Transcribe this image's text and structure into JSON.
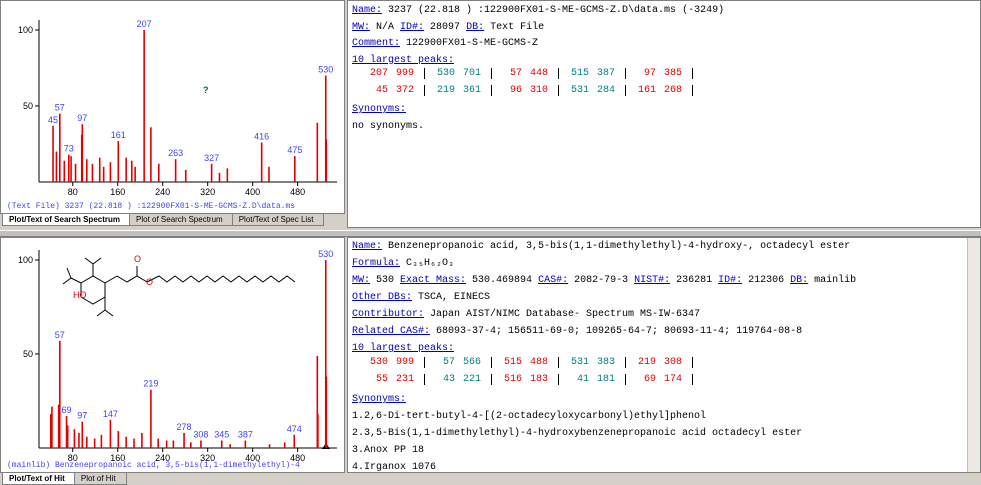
{
  "search": {
    "spectrum": {
      "xlim": [
        20,
        550
      ],
      "ylim": [
        0,
        100
      ],
      "xticks": [
        80,
        160,
        240,
        320,
        400,
        480
      ],
      "yticks": [
        50,
        100
      ],
      "labeled_peaks": {
        "mz": [
          45,
          57,
          73,
          97,
          161,
          207,
          263,
          327,
          416,
          475,
          530
        ],
        "intensity": [
          37,
          45,
          18,
          38,
          27,
          100,
          15,
          12,
          26,
          17,
          70
        ]
      },
      "other_peaks": {
        "mz": [
          51,
          65,
          77,
          85,
          96,
          105,
          115,
          128,
          135,
          147,
          175,
          185,
          191,
          219,
          233,
          281,
          341,
          355,
          429,
          515,
          531
        ],
        "intensity": [
          20,
          14,
          17,
          12,
          31,
          15,
          12,
          16,
          10,
          13,
          16,
          14,
          10,
          36,
          12,
          8,
          6,
          9,
          10,
          39,
          28
        ]
      },
      "marker": "?",
      "caption": "(Text File) 3237 (22.818 ) :122900FX01-S-ME-GCMS-Z.D\\data.ms"
    },
    "tabs": [
      "Plot/Text of Search Spectrum",
      "Plot of Search Spectrum",
      "Plot/Text of Spec List"
    ],
    "info": {
      "lines": [
        [
          {
            "label": "Name:"
          },
          {
            "text": "3237 (22.818 ) :122900FX01-S-ME-GCMS-Z.D\\data.ms (-3249)"
          }
        ],
        [
          {
            "label": "MW:"
          },
          {
            "text": "N/A"
          },
          {
            "label": "ID#:"
          },
          {
            "text": "28097"
          },
          {
            "label": "DB:"
          },
          {
            "text": "Text File"
          }
        ],
        [
          {
            "label": "Comment:"
          },
          {
            "text": "122900FX01-S-ME-GCMS-Z"
          }
        ],
        [
          {
            "label": "10 largest peaks:"
          }
        ]
      ],
      "peaks": [
        [
          [
            207,
            999
          ],
          [
            530,
            701
          ],
          [
            57,
            448
          ],
          [
            515,
            387
          ],
          [
            97,
            385
          ]
        ],
        [
          [
            45,
            372
          ],
          [
            219,
            361
          ],
          [
            96,
            310
          ],
          [
            531,
            284
          ],
          [
            161,
            268
          ]
        ]
      ],
      "after": [
        [
          {
            "label": "Synonyms:"
          }
        ],
        [
          {
            "text": "no synonyms."
          }
        ]
      ]
    }
  },
  "hit": {
    "spectrum": {
      "xlim": [
        20,
        550
      ],
      "ylim": [
        0,
        100
      ],
      "xticks": [
        80,
        160,
        240,
        320,
        400,
        480
      ],
      "yticks": [
        50,
        100
      ],
      "labeled_peaks": {
        "mz": [
          57,
          69,
          97,
          147,
          219,
          278,
          308,
          345,
          387,
          474,
          530
        ],
        "intensity": [
          57,
          17,
          14,
          15,
          31,
          8,
          4,
          4,
          4,
          7,
          100
        ]
      },
      "other_peaks": {
        "mz": [
          41,
          43,
          55,
          71,
          83,
          91,
          105,
          119,
          131,
          161,
          175,
          189,
          203,
          232,
          247,
          259,
          290,
          360,
          430,
          457,
          515,
          516,
          531
        ],
        "intensity": [
          18,
          22,
          23,
          12,
          10,
          8,
          6,
          5,
          7,
          9,
          6,
          5,
          8,
          5,
          4,
          4,
          3,
          2,
          2,
          3,
          49,
          18,
          38
        ]
      },
      "caption": "(mainlib) Benzenepropanoic acid, 3,5-bis(1,1-dimethylethyl)-4"
    },
    "tabs": [
      "Plot/Text of Hit",
      "Plot of Hit"
    ],
    "info": {
      "lines": [
        [
          {
            "label": "Name:"
          },
          {
            "text": "Benzenepropanoic acid, 3,5-bis(1,1-dimethylethyl)-4-hydroxy-, octadecyl ester"
          }
        ],
        [
          {
            "label": "Formula:"
          },
          {
            "text": "C₃₅H₆₂O₃"
          }
        ],
        [
          {
            "label": "MW:"
          },
          {
            "text": "530"
          },
          {
            "label": "Exact Mass:"
          },
          {
            "text": "530.469894"
          },
          {
            "label": "CAS#:"
          },
          {
            "text": "2082-79-3"
          },
          {
            "label": "NIST#:"
          },
          {
            "text": "236281"
          },
          {
            "label": "ID#:"
          },
          {
            "text": "212306"
          },
          {
            "label": "DB:"
          },
          {
            "text": "mainlib"
          }
        ],
        [
          {
            "label": "Other DBs:"
          },
          {
            "text": "TSCA, EINECS"
          }
        ],
        [
          {
            "label": "Contributor:"
          },
          {
            "text": "Japan AIST/NIMC Database- Spectrum MS-IW-6347"
          }
        ],
        [
          {
            "label": "Related CAS#:"
          },
          {
            "text": "68093-37-4; 156511-69-0; 109265-64-7; 80693-11-4; 119764-08-8"
          }
        ],
        [
          {
            "label": "10 largest peaks:"
          }
        ]
      ],
      "peaks": [
        [
          [
            530,
            999
          ],
          [
            57,
            566
          ],
          [
            515,
            488
          ],
          [
            531,
            383
          ],
          [
            219,
            308
          ]
        ],
        [
          [
            55,
            231
          ],
          [
            43,
            221
          ],
          [
            516,
            183
          ],
          [
            41,
            181
          ],
          [
            69,
            174
          ]
        ]
      ],
      "after": [
        [
          {
            "label": "Synonyms:"
          }
        ],
        [
          {
            "text": "1.2,6-Di-tert-butyl-4-[(2-octadecyloxycarbonyl)ethyl]phenol"
          }
        ],
        [
          {
            "text": "2.3,5-Bis(1,1-dimethylethyl)-4-hydroxybenzenepropanoic acid octadecyl ester"
          }
        ],
        [
          {
            "text": "3.Anox PP 18"
          }
        ],
        [
          {
            "text": "4.Irganox 1076"
          }
        ]
      ]
    }
  },
  "peak_colors": [
    "#e00000",
    "#008080"
  ]
}
